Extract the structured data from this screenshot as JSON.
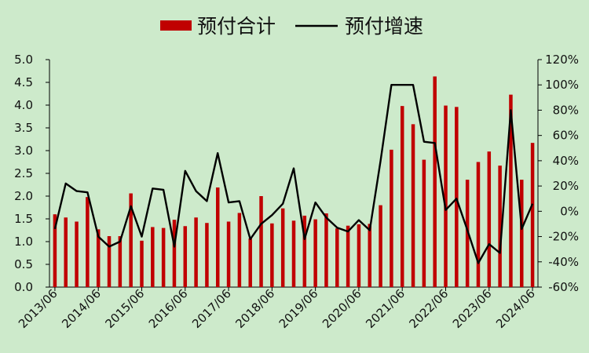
{
  "chart_data": {
    "type": "bar+line",
    "legend": {
      "position": "top-center",
      "bar_label": "预付合计",
      "line_label": "预付增速"
    },
    "colors": {
      "bar": "#c00000",
      "line": "#000000",
      "background": "#cdeacb"
    },
    "x_tick_labels": [
      "2013/06",
      "2014/06",
      "2015/06",
      "2016/06",
      "2017/06",
      "2018/06",
      "2019/06",
      "2020/06",
      "2021/06",
      "2022/06",
      "2023/06",
      "2024/06"
    ],
    "left_axis": {
      "ylim": [
        0,
        5
      ],
      "tick_labels": [
        "0.0",
        "0.5",
        "1.0",
        "1.5",
        "2.0",
        "2.5",
        "3.0",
        "3.5",
        "4.0",
        "4.5",
        "5.0"
      ]
    },
    "right_axis": {
      "ylim": [
        -60,
        120
      ],
      "tick_labels": [
        "-60%",
        "-40%",
        "-20%",
        "0%",
        "20%",
        "40%",
        "60%",
        "80%",
        "100%",
        "120%"
      ]
    },
    "series": [
      {
        "name": "预付合计",
        "type": "bar",
        "axis": "left",
        "values": [
          1.6,
          1.53,
          1.44,
          1.98,
          1.27,
          1.12,
          1.12,
          2.06,
          1.02,
          1.32,
          1.3,
          1.48,
          1.34,
          1.53,
          1.41,
          2.19,
          1.44,
          1.63,
          1.07,
          2.0,
          1.4,
          1.73,
          1.46,
          1.57,
          1.49,
          1.62,
          1.29,
          1.35,
          1.38,
          1.39,
          1.8,
          3.02,
          3.98,
          3.58,
          2.8,
          4.63,
          3.99,
          3.96,
          2.36,
          2.75,
          2.98,
          2.67,
          4.23,
          2.36,
          3.17
        ]
      },
      {
        "name": "预付增速",
        "type": "line",
        "axis": "right",
        "unit": "%",
        "values": [
          -14,
          22,
          16,
          15,
          -20,
          -28,
          -24,
          4,
          -20,
          18,
          17,
          -28,
          32,
          16,
          8,
          46,
          7,
          8,
          -22,
          -10,
          -3,
          6,
          34,
          -22,
          7,
          -5,
          -13,
          -16,
          -7,
          -15,
          40,
          100,
          100,
          100,
          55,
          54,
          1,
          10,
          -15,
          -41,
          -26,
          -33,
          80,
          -14,
          6
        ]
      }
    ]
  }
}
